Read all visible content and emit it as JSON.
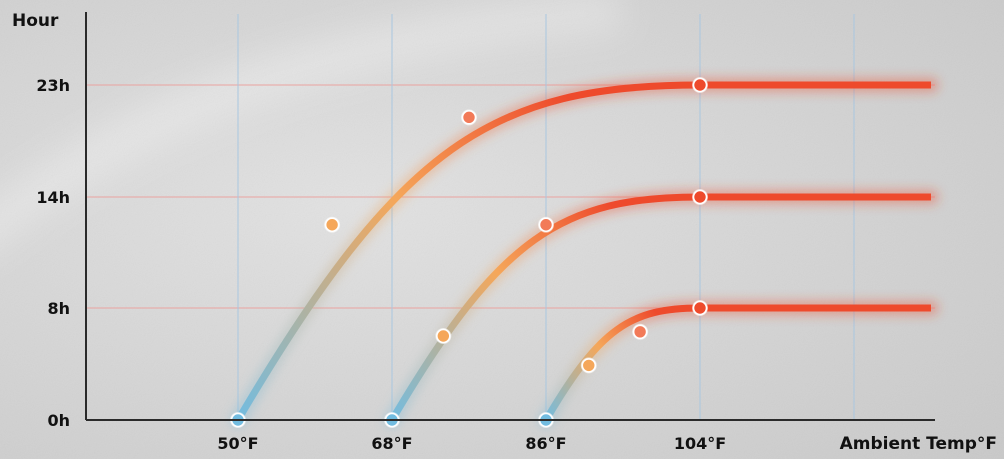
{
  "chart_data": {
    "type": "line",
    "ylabel": "Hour",
    "xlabel": "Ambient Temp°F",
    "x_ticks": [
      50,
      68,
      86,
      104
    ],
    "x_tick_labels": [
      "50°F",
      "68°F",
      "86°F",
      "104°F"
    ],
    "y_ticks": [
      0,
      8,
      14,
      23
    ],
    "y_tick_labels": [
      "0h",
      "8h",
      "14h",
      "23h"
    ],
    "grid": true,
    "series": [
      {
        "x": [
          50,
          61,
          77,
          104,
          131
        ],
        "y": [
          0,
          12.5,
          20.4,
          23,
          23
        ]
      },
      {
        "x": [
          68,
          74,
          86,
          104,
          131
        ],
        "y": [
          0,
          6,
          12.5,
          14,
          14
        ]
      },
      {
        "x": [
          86,
          91,
          97,
          104,
          131
        ],
        "y": [
          0,
          3.9,
          6.3,
          8,
          8
        ]
      }
    ],
    "colors": {
      "cold": "#72bce0",
      "mid": "#f5a75a",
      "hot": "#ee4a2c",
      "grid_h": "#eaa3a0",
      "grid_v": "#a9c7e0",
      "axis": "#2a2a2a",
      "background": "#d9d9d9"
    }
  }
}
